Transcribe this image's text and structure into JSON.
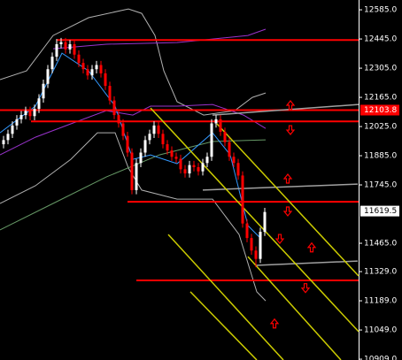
{
  "chart_data": {
    "type": "candlestick",
    "xlim": [
      -0.8,
      80.2
    ],
    "ylim": [
      10905,
      12632
    ],
    "yticks": [
      {
        "value": 12585,
        "label": "12585.0"
      },
      {
        "value": 12445,
        "label": "12445.0"
      },
      {
        "value": 12305,
        "label": "12305.0"
      },
      {
        "value": 12165,
        "label": "12165.0"
      },
      {
        "value": 12025,
        "label": "12025.0"
      },
      {
        "value": 11885,
        "label": "11885.0"
      },
      {
        "value": 11745,
        "label": "11745.0"
      },
      {
        "value": 11465,
        "label": "11465.0"
      },
      {
        "value": 11329,
        "label": "11329.0"
      },
      {
        "value": 11189,
        "label": "11189.0"
      },
      {
        "value": 11049,
        "label": "11049.0"
      },
      {
        "value": 10909,
        "label": "10909.0"
      }
    ],
    "up_color": "#ffffff",
    "down_color": "#ff0000",
    "x": [
      0,
      1,
      2,
      3,
      4,
      5,
      6,
      7,
      8,
      9,
      10,
      11,
      12,
      13,
      14,
      15,
      16,
      17,
      18,
      19,
      20,
      21,
      22,
      23,
      24,
      25,
      26,
      27,
      28,
      29,
      30,
      31,
      32,
      33,
      34,
      35,
      36,
      37,
      38,
      39,
      40,
      41,
      42,
      43,
      44,
      45,
      46,
      47,
      48,
      49,
      50,
      51,
      52,
      53,
      54,
      55,
      56,
      57,
      58,
      59
    ],
    "open": [
      11940,
      11960,
      11990,
      12030,
      12060,
      12080,
      12100,
      12075,
      12110,
      12160,
      12230,
      12300,
      12360,
      12420,
      12430,
      12395,
      12420,
      12370,
      12330,
      12300,
      12270,
      12300,
      12320,
      12280,
      12220,
      12150,
      12080,
      12040,
      11980,
      11900,
      11720,
      11850,
      11900,
      11960,
      11990,
      12030,
      11990,
      11940,
      11910,
      11880,
      11870,
      11820,
      11800,
      11840,
      11830,
      11810,
      11850,
      11880,
      12040,
      12060,
      12000,
      11950,
      11880,
      11850,
      11790,
      11560,
      11490,
      11430,
      11390,
      11520
    ],
    "high": [
      11980,
      12010,
      12050,
      12080,
      12100,
      12120,
      12120,
      12130,
      12180,
      12250,
      12320,
      12380,
      12445,
      12450,
      12450,
      12440,
      12440,
      12390,
      12350,
      12320,
      12320,
      12340,
      12340,
      12300,
      12240,
      12170,
      12100,
      12060,
      12000,
      11920,
      11870,
      11920,
      11980,
      12010,
      12050,
      12050,
      12010,
      11960,
      11930,
      11900,
      11890,
      11840,
      11860,
      11860,
      11850,
      11870,
      11900,
      12060,
      12080,
      12080,
      12020,
      11970,
      11900,
      11870,
      11810,
      11580,
      11510,
      11450,
      11540,
      11635
    ],
    "low": [
      11920,
      11940,
      11970,
      12010,
      12040,
      12060,
      12055,
      12055,
      12090,
      12140,
      12210,
      12280,
      12340,
      12400,
      12375,
      12375,
      12350,
      12310,
      12280,
      12250,
      12250,
      12280,
      12260,
      12200,
      12130,
      12060,
      12020,
      11960,
      11880,
      11700,
      11700,
      11830,
      11880,
      11940,
      11970,
      11970,
      11920,
      11890,
      11860,
      11850,
      11800,
      11780,
      11780,
      11810,
      11790,
      11790,
      11830,
      11860,
      12020,
      11980,
      11930,
      11860,
      11830,
      11770,
      11540,
      11470,
      11410,
      11350,
      11370,
      11500
    ],
    "close": [
      11960,
      11990,
      12030,
      12060,
      12080,
      12100,
      12075,
      12110,
      12160,
      12230,
      12300,
      12360,
      12420,
      12430,
      12395,
      12420,
      12370,
      12330,
      12300,
      12270,
      12300,
      12320,
      12280,
      12220,
      12150,
      12080,
      12040,
      11980,
      11900,
      11720,
      11850,
      11900,
      11960,
      11990,
      12030,
      11990,
      11940,
      11910,
      11880,
      11870,
      11820,
      11800,
      11840,
      11830,
      11810,
      11850,
      11880,
      12040,
      12060,
      12000,
      11950,
      11880,
      11850,
      11790,
      11560,
      11490,
      11430,
      11390,
      11520,
      11615
    ],
    "indicators": [
      {
        "color": "#b0b0b0",
        "x": [
          -0.8,
          5.2,
          11.2,
          19.2,
          28.2,
          31.2,
          34.2,
          36.2,
          39.2,
          45.2,
          52.2,
          56.2,
          59.2
        ],
        "values": [
          12250,
          12292,
          12462,
          12547,
          12589,
          12568,
          12462,
          12292,
          12144,
          12080,
          12101,
          12165,
          12186
        ]
      },
      {
        "color": "#b0b0b0",
        "x": [
          -0.8,
          7.2,
          15.2,
          21.2,
          25.2,
          28.2,
          31.2,
          39.2,
          47.2,
          53.2,
          57.2,
          59.2
        ],
        "values": [
          11656,
          11741,
          11868,
          11995,
          11995,
          11826,
          11720,
          11677,
          11677,
          11507,
          11232,
          11189
        ]
      },
      {
        "color": "#9933cc",
        "x": [
          -0.8,
          7.2,
          15.2,
          23.2,
          29.2,
          33.2,
          39.2,
          47.2,
          54.2,
          59.2
        ],
        "values": [
          11889,
          11974,
          12038,
          12101,
          12080,
          12123,
          12123,
          12131,
          12080,
          12016
        ]
      },
      {
        "color": "#9933cc",
        "x": [
          11.2,
          23.2,
          39.2,
          55.2,
          59.2
        ],
        "values": [
          12398,
          12420,
          12428,
          12462,
          12492
        ]
      },
      {
        "color": "#669966",
        "x": [
          -0.8,
          11.2,
          23.2,
          35.2,
          47.2,
          59.2
        ],
        "values": [
          11529,
          11656,
          11783,
          11889,
          11953,
          11961
        ]
      },
      {
        "color": "#3399ff",
        "x": [
          -0.8,
          7.2,
          13.2,
          19.2,
          25.2,
          29.2,
          33.2,
          39.2,
          47.2,
          51.2,
          55.2,
          58.2
        ],
        "values": [
          11995,
          12123,
          12377,
          12292,
          12123,
          11868,
          11889,
          11847,
          11995,
          11889,
          11550,
          11486
        ]
      }
    ],
    "overlays": [
      {
        "color": "#ff0000",
        "x": [
          12,
          80.2
        ],
        "values": [
          12440,
          12440
        ]
      },
      {
        "color": "#ff0000",
        "x": [
          -0.8,
          80.2
        ],
        "values": [
          12103.8,
          12103.8
        ]
      },
      {
        "color": "#ff0000",
        "x": [
          6.2,
          80.2
        ],
        "values": [
          12050,
          12050
        ]
      },
      {
        "color": "#ff0000",
        "x": [
          28,
          80.2
        ],
        "values": [
          11664,
          11664
        ]
      },
      {
        "color": "#ff0000",
        "x": [
          30,
          80.2
        ],
        "values": [
          11287,
          11287
        ]
      },
      {
        "color": "#a0a0a0",
        "x": [
          47.2,
          80.2
        ],
        "values": [
          12080,
          12131
        ]
      },
      {
        "color": "#a0a0a0",
        "x": [
          45,
          80
        ],
        "values": [
          11720,
          11749
        ]
      },
      {
        "color": "#a0a0a0",
        "x": [
          57,
          80
        ],
        "values": [
          11359,
          11380
        ]
      },
      {
        "color": "#cccc00",
        "x": [
          33.2,
          80.2
        ],
        "values": [
          12114,
          11041
        ]
      },
      {
        "color": "#cccc00",
        "x": [
          48.2,
          80.2
        ],
        "values": [
          12038,
          11308
        ]
      },
      {
        "color": "#cccc00",
        "x": [
          37.2,
          63.2
        ],
        "values": [
          11507,
          10905
        ]
      },
      {
        "color": "#cccc00",
        "x": [
          42.2,
          57.2
        ],
        "values": [
          11232,
          10905
        ]
      },
      {
        "color": "#cccc00",
        "x": [
          55.2,
          76.2
        ],
        "values": [
          11401,
          10905
        ]
      }
    ],
    "arrow_color": "#ff0000",
    "arrows": [
      {
        "x": 64.8,
        "y": 12127,
        "direction": "up"
      },
      {
        "x": 64.8,
        "y": 12008,
        "direction": "down"
      },
      {
        "x": 64.2,
        "y": 11775,
        "direction": "up"
      },
      {
        "x": 64.2,
        "y": 11618,
        "direction": "down"
      },
      {
        "x": 62.4,
        "y": 11486,
        "direction": "down"
      },
      {
        "x": 69.6,
        "y": 11445,
        "direction": "up"
      },
      {
        "x": 68.2,
        "y": 11250,
        "direction": "down"
      },
      {
        "x": 61.2,
        "y": 11080,
        "direction": "up"
      }
    ],
    "price_labels": [
      {
        "value": 12103.8,
        "label": "12103.8",
        "color": "#ff0000",
        "text_color": "#ffffff"
      },
      {
        "value": 11619.5,
        "label": "11619.5",
        "color": "#ffffff",
        "text_color": "#000000"
      }
    ]
  }
}
